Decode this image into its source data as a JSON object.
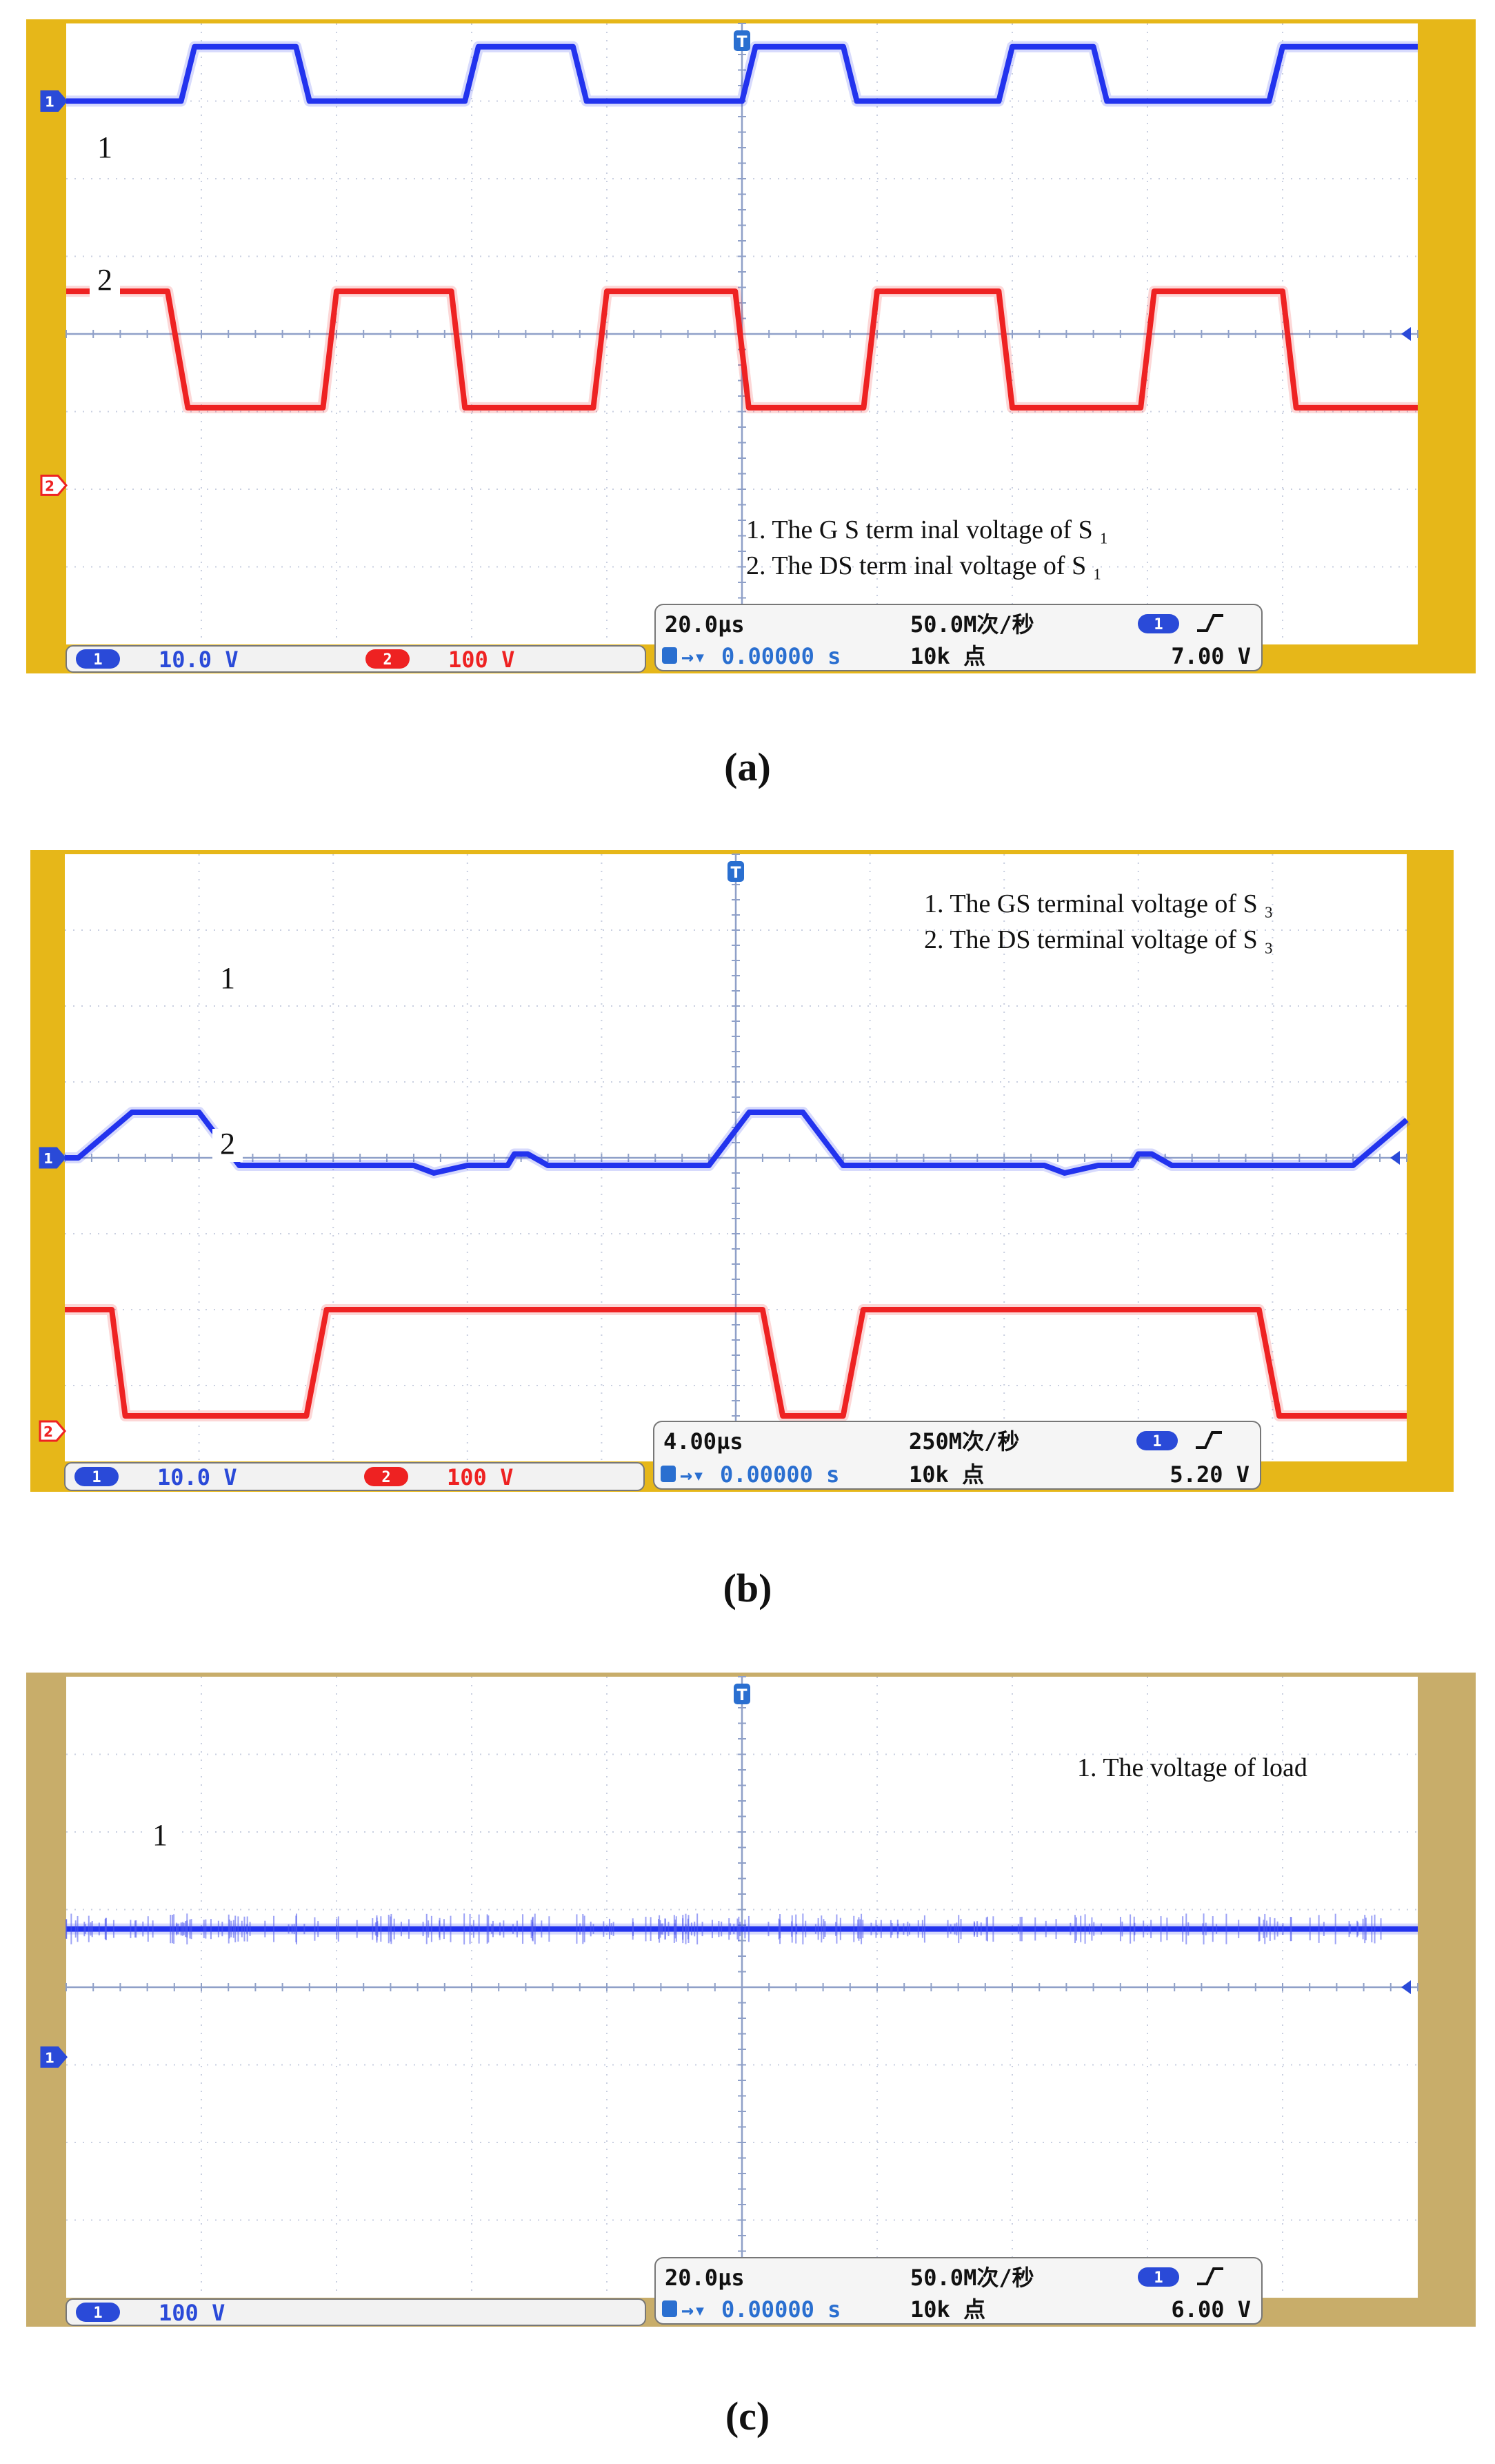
{
  "panels": [
    {
      "id": "a",
      "caption": "(a)",
      "frame_color": "#e6b719",
      "channels": [
        {
          "num": "1",
          "scale": "10.0 V",
          "color": "#2233ee"
        },
        {
          "num": "2",
          "scale": "100 V",
          "color": "#ee2222"
        }
      ],
      "timebase": "20.0µs",
      "trigger_pos": "0.00000 s",
      "sample_rate": "50.0M次/秒",
      "record_length": "10k 点",
      "trigger_source": "1",
      "trigger_level": "7.00 V",
      "legend": [
        "1. The G S term inal voltage of S ₁",
        "2. The DS term inal voltage of S ₁"
      ],
      "trace_labels": [
        "1",
        "2"
      ]
    },
    {
      "id": "b",
      "caption": "(b)",
      "frame_color": "#e6b719",
      "channels": [
        {
          "num": "1",
          "scale": "10.0 V",
          "color": "#2233ee"
        },
        {
          "num": "2",
          "scale": "100 V",
          "color": "#ee2222"
        }
      ],
      "timebase": "4.00µs",
      "trigger_pos": "0.00000 s",
      "sample_rate": "250M次/秒",
      "record_length": "10k 点",
      "trigger_source": "1",
      "trigger_level": "5.20 V",
      "legend": [
        "1. The GS terminal voltage of S ₃",
        "2. The DS terminal voltage of S ₃"
      ],
      "trace_labels": [
        "1",
        "2"
      ]
    },
    {
      "id": "c",
      "caption": "(c)",
      "frame_color": "#c8ad6a",
      "channels": [
        {
          "num": "1",
          "scale": "100 V",
          "color": "#2233ee"
        }
      ],
      "timebase": "20.0µs",
      "trigger_pos": "0.00000 s",
      "sample_rate": "50.0M次/秒",
      "record_length": "10k 点",
      "trigger_source": "1",
      "trigger_level": "6.00 V",
      "legend": [
        "1. The voltage of load"
      ],
      "trace_labels": [
        "1"
      ]
    }
  ],
  "chart_data": [
    {
      "type": "line",
      "x_unit": "div",
      "y_unit": "div",
      "xlim": [
        0,
        10
      ],
      "ylim": [
        -4,
        4
      ],
      "grid": true,
      "series": [
        {
          "name": "1. The G S term inal voltage of S 1",
          "color": "#2233ee",
          "x": [
            0,
            0.85,
            0.95,
            1.7,
            1.8,
            2.95,
            3.05,
            3.75,
            3.85,
            5.0,
            5.1,
            5.75,
            5.85,
            6.9,
            7.0,
            7.6,
            7.7,
            8.9,
            9.0,
            10
          ],
          "y": [
            3.0,
            3.0,
            3.7,
            3.7,
            3.0,
            3.0,
            3.7,
            3.7,
            3.0,
            3.0,
            3.7,
            3.7,
            3.0,
            3.0,
            3.7,
            3.7,
            3.0,
            3.0,
            3.7,
            3.7
          ]
        },
        {
          "name": "2. The DS term inal voltage of S 1",
          "color": "#ee2222",
          "x": [
            0,
            0.75,
            0.9,
            1.9,
            2.0,
            2.85,
            2.95,
            3.9,
            4.0,
            4.95,
            5.05,
            5.9,
            6.0,
            6.9,
            7.0,
            7.95,
            8.05,
            9.0,
            9.1,
            10
          ],
          "y": [
            0.55,
            0.55,
            -0.95,
            -0.95,
            0.55,
            0.55,
            -0.95,
            -0.95,
            0.55,
            0.55,
            -0.95,
            -0.95,
            0.55,
            0.55,
            -0.95,
            -0.95,
            0.55,
            0.55,
            -0.95,
            -0.95
          ]
        }
      ]
    },
    {
      "type": "line",
      "x_unit": "div",
      "y_unit": "div",
      "xlim": [
        0,
        10
      ],
      "ylim": [
        -4,
        4
      ],
      "grid": true,
      "series": [
        {
          "name": "1. The GS terminal voltage of S 3",
          "color": "#2233ee",
          "x": [
            0,
            0.1,
            0.5,
            1.0,
            1.3,
            2.6,
            2.75,
            3.0,
            3.3,
            3.35,
            3.45,
            3.6,
            4.8,
            5.1,
            5.5,
            5.8,
            7.3,
            7.45,
            7.7,
            7.95,
            8.0,
            8.1,
            8.25,
            9.6,
            10
          ],
          "y": [
            0.0,
            0.0,
            0.6,
            0.6,
            -0.1,
            -0.1,
            -0.2,
            -0.1,
            -0.1,
            0.05,
            0.05,
            -0.1,
            -0.1,
            0.6,
            0.6,
            -0.1,
            -0.1,
            -0.2,
            -0.1,
            -0.1,
            0.05,
            0.05,
            -0.1,
            -0.1,
            0.5
          ]
        },
        {
          "name": "2. The DS terminal voltage of S 3",
          "color": "#ee2222",
          "x": [
            0,
            0.35,
            0.45,
            1.8,
            1.95,
            5.2,
            5.35,
            5.8,
            5.95,
            8.9,
            9.05,
            10
          ],
          "y": [
            -2.0,
            -2.0,
            -3.4,
            -3.4,
            -2.0,
            -2.0,
            -3.4,
            -3.4,
            -2.0,
            -2.0,
            -3.4,
            -3.4
          ]
        }
      ]
    },
    {
      "type": "line",
      "x_unit": "div",
      "y_unit": "div",
      "xlim": [
        0,
        10
      ],
      "ylim": [
        -4,
        4
      ],
      "grid": true,
      "series": [
        {
          "name": "1. The voltage of load",
          "color": "#2233ee",
          "x": [
            0,
            10
          ],
          "y": [
            0.75,
            0.75
          ]
        }
      ]
    }
  ]
}
